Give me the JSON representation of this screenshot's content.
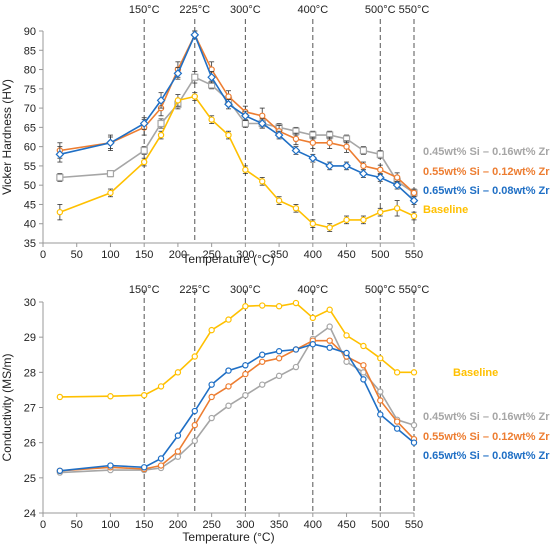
{
  "chart_data": [
    {
      "type": "line",
      "title": "",
      "xlabel": "Temperature (°C)",
      "ylabel": "Vicker Hardness (HV)",
      "xlim": [
        0,
        550
      ],
      "ylim": [
        35,
        90
      ],
      "xticks": [
        0,
        50,
        100,
        150,
        200,
        250,
        300,
        350,
        400,
        450,
        500,
        550
      ],
      "yticks": [
        35,
        40,
        45,
        50,
        55,
        60,
        65,
        70,
        75,
        80,
        85,
        90
      ],
      "grid": false,
      "legend": "right",
      "vlines": [
        {
          "x": 150,
          "label": "150°C"
        },
        {
          "x": 225,
          "label": "225°C"
        },
        {
          "x": 300,
          "label": "300°C"
        },
        {
          "x": 400,
          "label": "400°C"
        },
        {
          "x": 500,
          "label": "500°C"
        },
        {
          "x": 550,
          "label": "550°C"
        }
      ],
      "series": [
        {
          "name": "0.45wt% Si – 0.16wt% Zr",
          "color": "#a6a6a6",
          "marker": "square",
          "x": [
            25,
            100,
            150,
            175,
            200,
            225,
            250,
            275,
            300,
            325,
            350,
            375,
            400,
            425,
            450,
            475,
            500,
            525,
            550
          ],
          "y": [
            52,
            53,
            59,
            66,
            71,
            78,
            76,
            72,
            66,
            66,
            65,
            64,
            63,
            63,
            62,
            59,
            58,
            51,
            48
          ],
          "err": [
            1,
            0.8,
            1,
            1.2,
            1.2,
            1.5,
            1,
            1,
            1,
            1.2,
            1,
            1,
            1,
            1,
            1,
            1,
            1,
            1,
            0.8
          ]
        },
        {
          "name": "0.55wt% Si – 0.12wt% Zr",
          "color": "#ed7d31",
          "marker": "circle",
          "x": [
            25,
            100,
            150,
            175,
            200,
            225,
            250,
            275,
            300,
            325,
            350,
            375,
            400,
            425,
            450,
            475,
            500,
            525,
            550
          ],
          "y": [
            59,
            61,
            65,
            70,
            80,
            89,
            80,
            73,
            69,
            68,
            64,
            62,
            61,
            61,
            60,
            55,
            54,
            52,
            48
          ],
          "err": [
            2,
            2,
            2,
            2,
            2,
            1,
            2,
            1.5,
            1.5,
            2,
            1.5,
            1.5,
            1.5,
            1.5,
            1.5,
            1,
            1.2,
            1.2,
            1
          ]
        },
        {
          "name": "0.65wt% Si – 0.08wt% Zr",
          "color": "#1f6fc5",
          "marker": "diamond",
          "x": [
            25,
            100,
            150,
            175,
            200,
            225,
            250,
            275,
            300,
            325,
            350,
            375,
            400,
            425,
            450,
            475,
            500,
            525,
            550
          ],
          "y": [
            58,
            61,
            66,
            72,
            79,
            89,
            78,
            71,
            68,
            66,
            63,
            59,
            57,
            55,
            55,
            53,
            52,
            50,
            46
          ],
          "err": [
            2,
            1.5,
            1.5,
            2,
            1.5,
            1,
            1.5,
            1.2,
            1.2,
            1.2,
            1,
            1,
            1,
            1,
            1,
            1,
            1,
            1,
            1
          ]
        },
        {
          "name": "Baseline",
          "color": "#ffc000",
          "marker": "circle",
          "x": [
            25,
            100,
            150,
            175,
            200,
            225,
            250,
            275,
            300,
            325,
            350,
            375,
            400,
            425,
            450,
            475,
            500,
            525,
            550
          ],
          "y": [
            43,
            48,
            56,
            63,
            72,
            73,
            67,
            63,
            54,
            51,
            46,
            44,
            40,
            39,
            41,
            41,
            43,
            44,
            42
          ],
          "err": [
            2,
            1,
            1,
            1,
            1.5,
            1,
            1,
            1,
            1,
            1,
            1,
            1,
            1,
            1,
            1,
            1,
            1,
            2,
            1
          ]
        }
      ]
    },
    {
      "type": "line",
      "title": "",
      "xlabel": "Temperature (°C)",
      "ylabel": "Conductivity  (MS/m)",
      "xlim": [
        0,
        550
      ],
      "ylim": [
        24,
        30
      ],
      "xticks": [
        0,
        50,
        100,
        150,
        200,
        250,
        300,
        350,
        400,
        450,
        500,
        550
      ],
      "yticks": [
        24,
        25,
        26,
        27,
        28,
        29,
        30
      ],
      "grid": false,
      "legend": "right",
      "vlines": [
        {
          "x": 150,
          "label": "150°C"
        },
        {
          "x": 225,
          "label": "225°C"
        },
        {
          "x": 300,
          "label": "300°C"
        },
        {
          "x": 400,
          "label": "400°C"
        },
        {
          "x": 500,
          "label": "500°C"
        },
        {
          "x": 550,
          "label": "550°C"
        }
      ],
      "series": [
        {
          "name": "Baseline",
          "color": "#ffc000",
          "marker": "circle",
          "x": [
            25,
            100,
            150,
            175,
            200,
            225,
            250,
            275,
            300,
            325,
            350,
            375,
            400,
            425,
            450,
            475,
            500,
            525,
            550
          ],
          "y": [
            27.3,
            27.32,
            27.35,
            27.6,
            28.0,
            28.45,
            29.2,
            29.5,
            29.88,
            29.9,
            29.88,
            29.97,
            29.55,
            29.78,
            29.05,
            28.75,
            28.4,
            28.0,
            28.0
          ],
          "err": [
            0,
            0,
            0,
            0,
            0,
            0,
            0,
            0,
            0,
            0,
            0,
            0,
            0,
            0,
            0,
            0,
            0,
            0,
            0
          ]
        },
        {
          "name": "0.45wt% Si – 0.16wt% Zr",
          "color": "#a6a6a6",
          "marker": "circle",
          "x": [
            25,
            100,
            150,
            175,
            200,
            225,
            250,
            275,
            300,
            325,
            350,
            375,
            400,
            425,
            450,
            475,
            500,
            525,
            550
          ],
          "y": [
            25.15,
            25.22,
            25.22,
            25.28,
            25.6,
            26.05,
            26.7,
            27.05,
            27.35,
            27.65,
            27.9,
            28.15,
            28.95,
            29.3,
            28.3,
            28.0,
            27.45,
            26.65,
            26.5
          ],
          "err": [
            0,
            0,
            0,
            0,
            0,
            0,
            0,
            0,
            0,
            0,
            0,
            0,
            0,
            0,
            0,
            0,
            0,
            0,
            0
          ]
        },
        {
          "name": "0.55wt% Si – 0.12wt% Zr",
          "color": "#ed7d31",
          "marker": "circle",
          "x": [
            25,
            100,
            150,
            175,
            200,
            225,
            250,
            275,
            300,
            325,
            350,
            375,
            400,
            425,
            450,
            475,
            500,
            525,
            550
          ],
          "y": [
            25.2,
            25.3,
            25.25,
            25.35,
            25.75,
            26.5,
            27.3,
            27.6,
            27.95,
            28.3,
            28.4,
            28.65,
            28.9,
            28.9,
            28.45,
            28.2,
            27.2,
            26.6,
            26.1
          ],
          "err": [
            0,
            0,
            0,
            0,
            0,
            0,
            0,
            0,
            0,
            0,
            0,
            0,
            0,
            0,
            0,
            0,
            0,
            0,
            0
          ]
        },
        {
          "name": "0.65wt% Si – 0.08wt% Zr",
          "color": "#1f6fc5",
          "marker": "circle",
          "x": [
            25,
            100,
            150,
            175,
            200,
            225,
            250,
            275,
            300,
            325,
            350,
            375,
            400,
            425,
            450,
            475,
            500,
            525,
            550
          ],
          "y": [
            25.2,
            25.35,
            25.3,
            25.55,
            26.2,
            26.9,
            27.65,
            28.05,
            28.2,
            28.5,
            28.6,
            28.65,
            28.8,
            28.7,
            28.55,
            27.8,
            26.8,
            26.4,
            26.0
          ],
          "err": [
            0,
            0,
            0,
            0,
            0,
            0,
            0,
            0,
            0,
            0,
            0,
            0,
            0,
            0,
            0,
            0,
            0,
            0,
            0
          ]
        }
      ]
    }
  ]
}
